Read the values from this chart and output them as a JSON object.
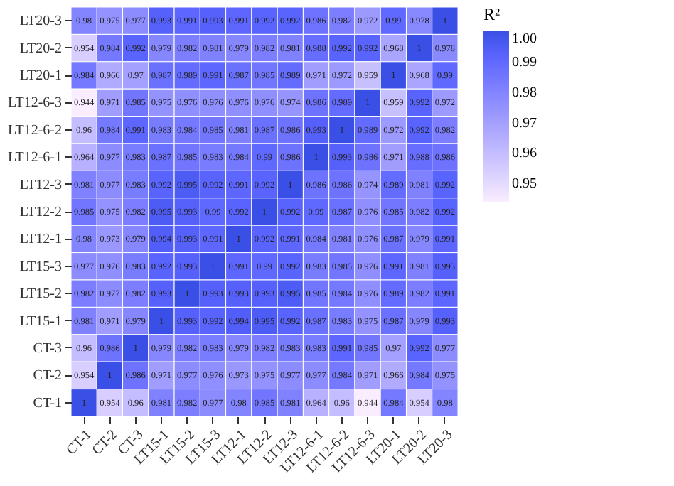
{
  "chart_data": {
    "type": "heatmap",
    "legend_title": "R²",
    "categories": [
      "CT-1",
      "CT-2",
      "CT-3",
      "LT15-1",
      "LT15-2",
      "LT15-3",
      "LT12-1",
      "LT12-2",
      "LT12-3",
      "LT12-6-1",
      "LT12-6-2",
      "LT12-6-3",
      "LT20-1",
      "LT20-2",
      "LT20-3"
    ],
    "y_categories": [
      "LT20-3",
      "LT20-2",
      "LT20-1",
      "LT12-6-3",
      "LT12-6-2",
      "LT12-6-1",
      "LT12-3",
      "LT12-2",
      "LT12-1",
      "LT15-3",
      "LT15-2",
      "LT15-1",
      "CT-3",
      "CT-2",
      "CT-1"
    ],
    "cells": [
      [
        0.98,
        0.975,
        0.977,
        0.993,
        0.991,
        0.993,
        0.991,
        0.992,
        0.992,
        0.986,
        0.982,
        0.972,
        0.99,
        0.978,
        1
      ],
      [
        0.954,
        0.984,
        0.992,
        0.979,
        0.982,
        0.981,
        0.979,
        0.982,
        0.981,
        0.988,
        0.992,
        0.992,
        0.968,
        1,
        0.978
      ],
      [
        0.984,
        0.966,
        0.97,
        0.987,
        0.989,
        0.991,
        0.987,
        0.985,
        0.989,
        0.971,
        0.972,
        0.959,
        1,
        0.968,
        0.99
      ],
      [
        0.944,
        0.971,
        0.985,
        0.975,
        0.976,
        0.976,
        0.976,
        0.976,
        0.974,
        0.986,
        0.989,
        1,
        0.959,
        0.992,
        0.972
      ],
      [
        0.96,
        0.984,
        0.991,
        0.983,
        0.984,
        0.985,
        0.981,
        0.987,
        0.986,
        0.993,
        1,
        0.989,
        0.972,
        0.992,
        0.982
      ],
      [
        0.964,
        0.977,
        0.983,
        0.987,
        0.985,
        0.983,
        0.984,
        0.99,
        0.986,
        1,
        0.993,
        0.986,
        0.971,
        0.988,
        0.986
      ],
      [
        0.981,
        0.977,
        0.983,
        0.992,
        0.995,
        0.992,
        0.991,
        0.992,
        1,
        0.986,
        0.986,
        0.974,
        0.989,
        0.981,
        0.992
      ],
      [
        0.985,
        0.975,
        0.982,
        0.995,
        0.993,
        0.99,
        0.992,
        1,
        0.992,
        0.99,
        0.987,
        0.976,
        0.985,
        0.982,
        0.992
      ],
      [
        0.98,
        0.973,
        0.979,
        0.994,
        0.993,
        0.991,
        1,
        0.992,
        0.991,
        0.984,
        0.981,
        0.976,
        0.987,
        0.979,
        0.991
      ],
      [
        0.977,
        0.976,
        0.983,
        0.992,
        0.993,
        1,
        0.991,
        0.99,
        0.992,
        0.983,
        0.985,
        0.976,
        0.991,
        0.981,
        0.993
      ],
      [
        0.982,
        0.977,
        0.982,
        0.993,
        1,
        0.993,
        0.993,
        0.993,
        0.995,
        0.985,
        0.984,
        0.976,
        0.989,
        0.982,
        0.991
      ],
      [
        0.981,
        0.971,
        0.979,
        1,
        0.993,
        0.992,
        0.994,
        0.995,
        0.992,
        0.987,
        0.983,
        0.975,
        0.987,
        0.979,
        0.993
      ],
      [
        0.96,
        0.986,
        1,
        0.979,
        0.982,
        0.983,
        0.979,
        0.982,
        0.983,
        0.983,
        0.991,
        0.985,
        0.97,
        0.992,
        0.977
      ],
      [
        0.954,
        1,
        0.986,
        0.971,
        0.977,
        0.976,
        0.973,
        0.975,
        0.977,
        0.977,
        0.984,
        0.971,
        0.966,
        0.984,
        0.975
      ],
      [
        1,
        0.954,
        0.96,
        0.981,
        0.982,
        0.977,
        0.98,
        0.985,
        0.981,
        0.964,
        0.96,
        0.944,
        0.984,
        0.954,
        0.98
      ]
    ],
    "data_labels": true,
    "colors": [
      "#ffffff",
      "#3a4fe6"
    ],
    "clim": [
      0.944,
      1
    ],
    "cticks": [
      {
        "value": 1,
        "label": "1.00"
      },
      0.99,
      0.98,
      0.97,
      0.96,
      0.95
    ]
  }
}
